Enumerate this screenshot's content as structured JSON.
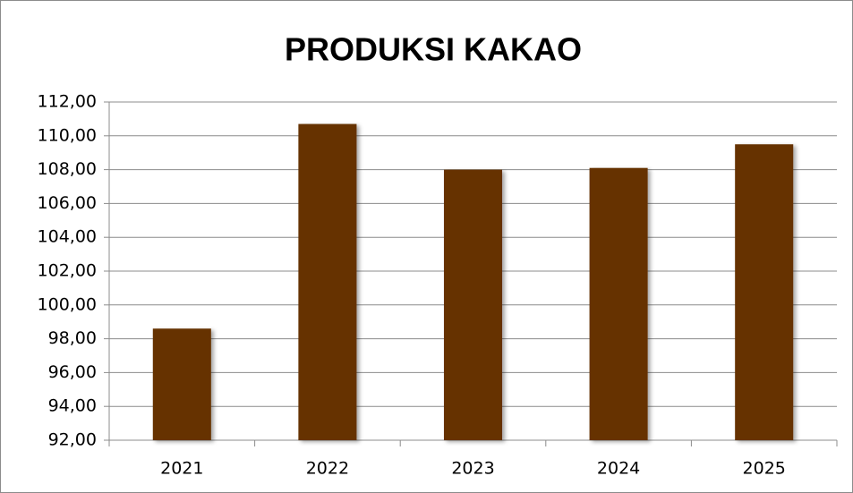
{
  "chart_data": {
    "type": "bar",
    "title": "PRODUKSI KAKAO",
    "categories": [
      "2021",
      "2022",
      "2023",
      "2024",
      "2025"
    ],
    "values": [
      98.6,
      110.7,
      108.0,
      108.1,
      109.5
    ],
    "color": "#663300",
    "ylim": [
      92,
      112
    ],
    "yticks": [
      {
        "value": 92,
        "label": "92,00"
      },
      {
        "value": 94,
        "label": "94,00"
      },
      {
        "value": 96,
        "label": "96,00"
      },
      {
        "value": 98,
        "label": "98,00"
      },
      {
        "value": 100,
        "label": "100,00"
      },
      {
        "value": 102,
        "label": "102,00"
      },
      {
        "value": 104,
        "label": "104,00"
      },
      {
        "value": 106,
        "label": "106,00"
      },
      {
        "value": 108,
        "label": "108,00"
      },
      {
        "value": 110,
        "label": "110,00"
      },
      {
        "value": 112,
        "label": "112,00"
      }
    ],
    "grid": true
  }
}
